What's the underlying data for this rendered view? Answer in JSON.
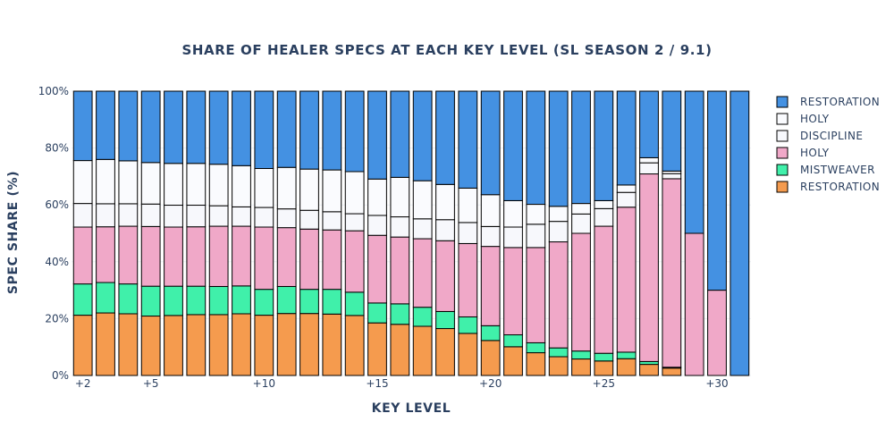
{
  "chart_data": {
    "type": "bar",
    "stacked": true,
    "title": "SHARE OF HEALER SPECS AT EACH KEY LEVEL (SL SEASON 2 / 9.1)",
    "xlabel": "KEY LEVEL",
    "ylabel": "SPEC SHARE (%)",
    "ylim": [
      0,
      100
    ],
    "y_ticks": [
      "0%",
      "20%",
      "40%",
      "60%",
      "80%",
      "100%"
    ],
    "x": [
      2,
      3,
      4,
      5,
      6,
      7,
      8,
      9,
      10,
      11,
      12,
      13,
      14,
      15,
      16,
      17,
      18,
      19,
      20,
      21,
      22,
      23,
      24,
      25,
      26,
      27,
      28,
      29,
      30,
      31
    ],
    "x_tick_values": [
      2,
      5,
      10,
      15,
      20,
      25,
      30
    ],
    "x_tick_labels": [
      "+2",
      "+5",
      "+10",
      "+15",
      "+20",
      "+25",
      "+30"
    ],
    "legend_position": "right",
    "series": [
      {
        "name": "RESTORATION",
        "color": "#f59b4e",
        "values": [
          21.2,
          22.0,
          21.7,
          20.9,
          21.1,
          21.4,
          21.4,
          21.7,
          21.2,
          21.8,
          21.8,
          21.6,
          21.1,
          18.5,
          18.0,
          17.3,
          16.5,
          14.8,
          12.3,
          10.1,
          8.0,
          6.6,
          5.8,
          5.1,
          5.9,
          3.9,
          2.6,
          0,
          0,
          0
        ]
      },
      {
        "name": "MISTWEAVER",
        "color": "#40f0aa",
        "values": [
          11.0,
          10.7,
          10.5,
          10.5,
          10.3,
          10.0,
          9.9,
          9.8,
          9.1,
          9.5,
          8.5,
          8.7,
          8.2,
          7.0,
          7.2,
          6.7,
          6.0,
          5.8,
          5.2,
          4.2,
          3.5,
          3.1,
          2.8,
          2.7,
          2.3,
          1.0,
          0.3,
          0,
          0,
          0
        ]
      },
      {
        "name": "HOLY",
        "color": "#f0a8c8",
        "values": [
          20.0,
          19.6,
          20.3,
          21.0,
          20.8,
          20.9,
          21.2,
          21.0,
          21.9,
          20.7,
          21.2,
          20.9,
          21.6,
          23.8,
          23.5,
          24.1,
          24.9,
          25.8,
          27.9,
          30.7,
          33.5,
          37.3,
          41.4,
          44.7,
          51.0,
          66.0,
          66.3,
          50.0,
          30.0,
          0
        ]
      },
      {
        "name": "DISCIPLINE",
        "color": "#f7f8fc",
        "values": [
          8.3,
          8.1,
          7.9,
          7.9,
          7.7,
          7.6,
          7.2,
          6.8,
          6.9,
          6.6,
          6.6,
          6.4,
          6.0,
          7.0,
          7.1,
          7.0,
          7.4,
          7.4,
          7.0,
          7.2,
          8.2,
          7.2,
          6.8,
          6.2,
          5.2,
          3.9,
          1.8,
          0,
          0,
          0
        ]
      },
      {
        "name": "HOLY",
        "color": "#fafbfe",
        "values": [
          15.1,
          15.6,
          15.1,
          14.6,
          14.7,
          14.7,
          14.6,
          14.5,
          13.7,
          14.6,
          14.5,
          14.7,
          14.8,
          12.8,
          13.9,
          13.4,
          12.4,
          12.1,
          11.2,
          9.3,
          7.0,
          5.3,
          3.7,
          2.8,
          2.6,
          1.8,
          0.9,
          0,
          0,
          0
        ]
      },
      {
        "name": "RESTORATION",
        "color": "#4491e2",
        "values": [
          24.4,
          24.0,
          24.5,
          25.1,
          25.4,
          25.4,
          25.7,
          26.2,
          27.2,
          26.8,
          27.4,
          27.7,
          28.3,
          30.9,
          30.3,
          31.5,
          32.8,
          34.1,
          36.4,
          38.5,
          39.8,
          40.5,
          39.5,
          38.5,
          33.0,
          23.4,
          28.1,
          50.0,
          70.0,
          100.0
        ]
      }
    ]
  }
}
